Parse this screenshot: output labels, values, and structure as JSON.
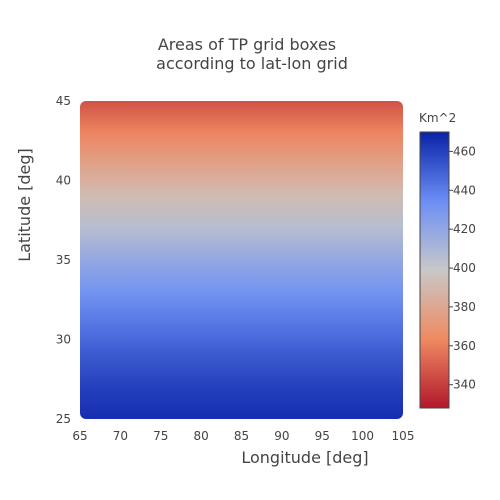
{
  "chart_data": {
    "type": "heatmap",
    "title": [
      "Areas of TP grid boxes",
      "according to lat-lon grid"
    ],
    "xlabel": "Longitude [deg]",
    "ylabel": "Latitude [deg]",
    "xlim": [
      65,
      105
    ],
    "ylim": [
      25,
      45
    ],
    "xticks": [
      65,
      70,
      75,
      80,
      85,
      90,
      95,
      100,
      105
    ],
    "yticks": [
      25,
      30,
      35,
      40,
      45
    ],
    "latitudes": [
      25,
      27,
      29,
      31,
      33,
      35,
      37,
      39,
      41,
      43,
      45
    ],
    "area_by_latitude": [
      466,
      460,
      452,
      442,
      431,
      419,
      406,
      392,
      377,
      362,
      346
    ],
    "note_values": "Area values vary with latitude only (constant across longitude).",
    "colorbar": {
      "title": "Km^2",
      "ticks": [
        340,
        360,
        380,
        400,
        420,
        440,
        460
      ],
      "range": [
        328,
        470
      ],
      "colorscale": [
        [
          0.0,
          "#b2182b"
        ],
        [
          0.25,
          "#ef8a62"
        ],
        [
          0.5,
          "#c8c8c8"
        ],
        [
          0.75,
          "#6b8ef5"
        ],
        [
          1.0,
          "#0a22a8"
        ]
      ]
    }
  }
}
